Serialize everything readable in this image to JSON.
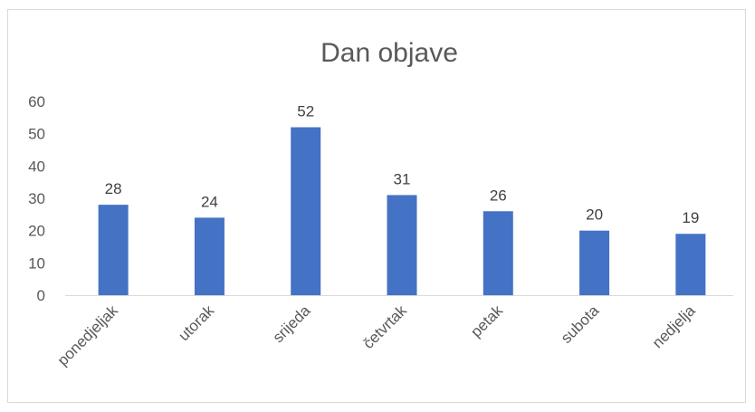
{
  "chart_data": {
    "type": "bar",
    "title": "Dan objave",
    "xlabel": "",
    "ylabel": "",
    "categories": [
      "ponedjeljak",
      "utorak",
      "srijeda",
      "četvrtak",
      "petak",
      "subota",
      "nedjelja"
    ],
    "values": [
      28,
      24,
      52,
      31,
      26,
      20,
      19
    ],
    "ylim": [
      0,
      60
    ],
    "yticks": [
      0,
      10,
      20,
      30,
      40,
      50,
      60
    ],
    "grid": false,
    "legend": "none",
    "data_labels": true,
    "bar_color": "#4472C4",
    "axis_color": "#d9d9d9",
    "text_color": "#595959"
  }
}
